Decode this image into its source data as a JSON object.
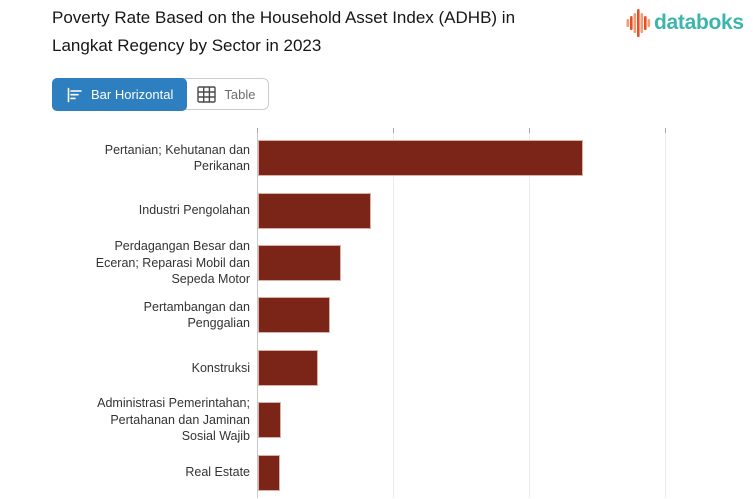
{
  "header": {
    "title_line1": "Poverty Rate Based on the Household Asset Index (ADHB) in",
    "title_line2": "Langkat Regency by Sector in 2023",
    "brand_name": "databoks"
  },
  "toolbar": {
    "bar_tab": "Bar Horizontal",
    "table_tab": "Table"
  },
  "colors": {
    "bar_fill": "#7a2517",
    "bar_border": "#ddb0a4",
    "active_tab_blue": "#2e7fc0",
    "brand_teal": "#3db5ac",
    "brand_orange_dark": "#e4502a",
    "brand_orange_light": "#f29d74",
    "gridline": "#eaeaea",
    "axis_line": "#c9c9c9",
    "tick": "#a8a8a8",
    "label_text": "#333333",
    "title_text": "#161616"
  },
  "chart_data": {
    "type": "bar",
    "orientation": "horizontal",
    "title": "Poverty Rate Based on the Household Asset Index (ADHB) in Langkat Regency by Sector in 2023",
    "categories": [
      [
        "Pertanian; Kehutanan dan",
        "Perikanan"
      ],
      [
        "Industri Pengolahan"
      ],
      [
        "Perdagangan Besar dan",
        "Eceran; Reparasi Mobil dan",
        "Sepeda Motor"
      ],
      [
        "Pertambangan dan",
        "Penggalian"
      ],
      [
        "Konstruksi"
      ],
      [
        "Administrasi Pemerintahan;",
        "Pertahanan dan Jaminan",
        "Sosial Wajib"
      ],
      [
        "Real Estate"
      ]
    ],
    "values": [
      23.9,
      8.3,
      6.1,
      5.3,
      4.4,
      1.7,
      1.6
    ],
    "value_axis": {
      "min": 0,
      "max": 36.5,
      "gridline_values": [
        10,
        20,
        30
      ],
      "labels_visible": false
    },
    "category_axis_side": "left",
    "bar_color": "#7a2517",
    "legend": false,
    "grid": true
  }
}
